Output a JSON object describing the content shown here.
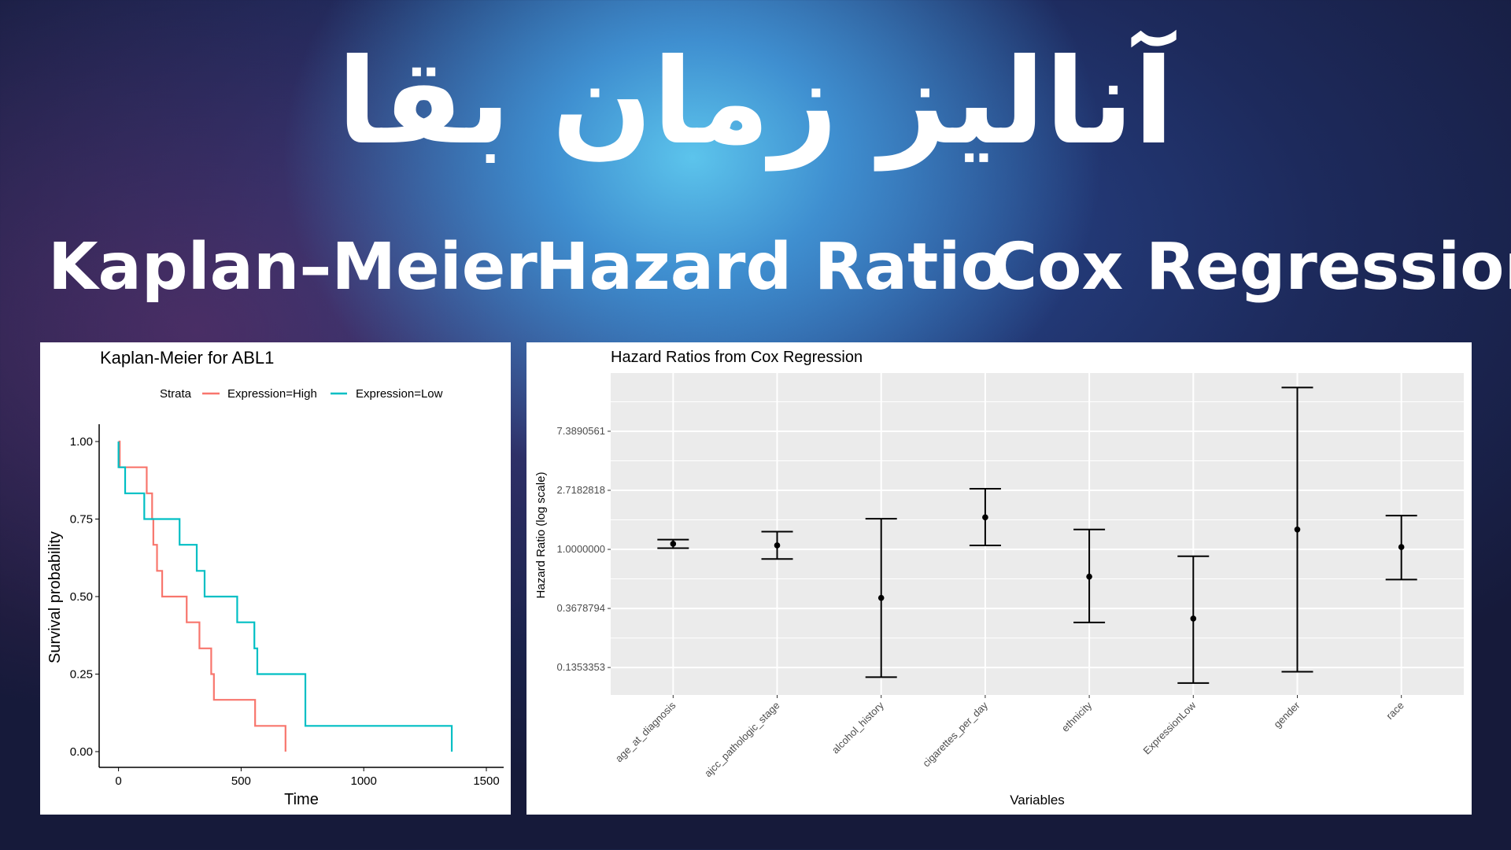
{
  "header": {
    "title": "آنالیز زمان بقا",
    "subtitles": [
      "Kaplan–Meier",
      "Hazard Ratio",
      "Cox Regression"
    ]
  },
  "chart_data": [
    {
      "type": "line",
      "step": true,
      "title": "Kaplan-Meier for ABL1",
      "xlabel": "Time",
      "ylabel": "Survival probability",
      "xlim": [
        0,
        1500
      ],
      "ylim": [
        0,
        1
      ],
      "xticks": [
        "0",
        "500",
        "1000",
        "1500"
      ],
      "yticks": [
        "0.00",
        "0.25",
        "0.50",
        "0.75",
        "1.00"
      ],
      "grid": false,
      "legend": {
        "title": "Strata",
        "placement": "top"
      },
      "series": [
        {
          "name": "Expression=High",
          "color": "#f8766d",
          "x": [
            0,
            5,
            115,
            137,
            142,
            157,
            178,
            278,
            330,
            378,
            389,
            557,
            681
          ],
          "y": [
            1,
            0.917,
            0.833,
            0.75,
            0.667,
            0.583,
            0.5,
            0.417,
            0.333,
            0.25,
            0.167,
            0.083,
            0
          ]
        },
        {
          "name": "Expression=Low",
          "color": "#00bfc4",
          "x": [
            0,
            0,
            27,
            105,
            249,
            319,
            351,
            484,
            554,
            566,
            762,
            1359
          ],
          "y": [
            1,
            0.917,
            0.833,
            0.75,
            0.667,
            0.583,
            0.5,
            0.417,
            0.333,
            0.25,
            0.083,
            0
          ]
        }
      ]
    },
    {
      "type": "errorbar",
      "title": "Hazard Ratios from Cox Regression",
      "xlabel": "Variables",
      "ylabel": "Hazard Ratio (log scale)",
      "yscale": "log",
      "yticks": [
        "7.3890561",
        "2.7182818",
        "1.0000000",
        "0.3678794",
        "0.1353353"
      ],
      "ytick_values": [
        7.3890561,
        2.7182818,
        1.0,
        0.3678794,
        0.1353353
      ],
      "ylim": [
        0.085,
        19.8
      ],
      "grid": true,
      "categories": [
        "age_at_diagnosis",
        "ajcc_pathologic_stage",
        "alcohol_history",
        "cigarettes_per_day",
        "ethnicity",
        "ExpressionLow",
        "gender",
        "race"
      ],
      "hr": [
        1.1,
        1.07,
        0.44,
        1.72,
        0.63,
        0.31,
        1.4,
        1.04
      ],
      "lower": [
        1.02,
        0.85,
        0.115,
        1.07,
        0.29,
        0.104,
        0.126,
        0.6
      ],
      "upper": [
        1.18,
        1.35,
        1.68,
        2.79,
        1.4,
        0.89,
        15.5,
        1.77
      ]
    }
  ]
}
